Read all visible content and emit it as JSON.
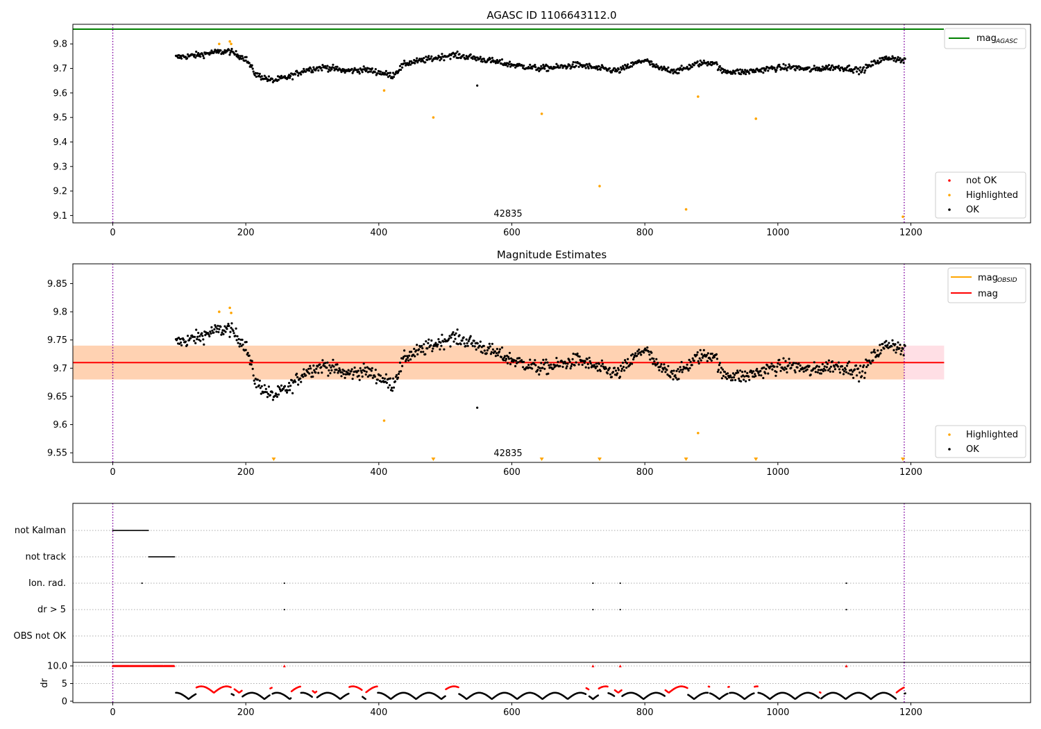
{
  "chart_data": [
    {
      "type": "scatter",
      "title": "AGASC ID 1106643112.0",
      "xlim": [
        -60,
        1380
      ],
      "ylim": [
        9.07,
        9.88
      ],
      "xticks": [
        0,
        200,
        400,
        600,
        800,
        1000,
        1200
      ],
      "yticks": [
        9.1,
        9.2,
        9.3,
        9.4,
        9.5,
        9.6,
        9.7,
        9.8
      ],
      "obsid_label": "42835",
      "obsid_label_x": 595,
      "mag_agasc": 9.86,
      "obs_boundaries": [
        0,
        1190
      ],
      "highlighted_points": {
        "x": [
          160,
          176,
          178,
          408,
          482,
          645,
          732,
          862,
          880,
          967,
          1188
        ],
        "y": [
          9.8,
          9.81,
          9.8,
          9.61,
          9.5,
          9.515,
          9.22,
          9.125,
          9.585,
          9.495,
          9.095
        ]
      },
      "outliers": {
        "x": [
          548
        ],
        "y": [
          9.63
        ]
      },
      "legend_lines": [
        {
          "label": "mag",
          "subscript": "AGASC",
          "color": "#008000"
        }
      ],
      "legend_points": [
        {
          "label": "not OK",
          "color": "#ff0000"
        },
        {
          "label": "Highlighted",
          "color": "#ffa500"
        },
        {
          "label": "OK",
          "color": "#000000"
        }
      ],
      "legend_placement_lines": "top-right",
      "legend_placement_points": "bottom-right"
    },
    {
      "type": "scatter",
      "title": "Magnitude Estimates",
      "xlim": [
        -60,
        1380
      ],
      "ylim": [
        9.533,
        9.885
      ],
      "xticks": [
        0,
        200,
        400,
        600,
        800,
        1000,
        1200
      ],
      "yticks": [
        9.55,
        9.6,
        9.65,
        9.7,
        9.75,
        9.8,
        9.85
      ],
      "obsid_label": "42835",
      "obsid_label_x": 595,
      "mag": 9.71,
      "mag_band": [
        9.68,
        9.74
      ],
      "mag_obsid_band": [
        9.68,
        9.74
      ],
      "band_x_range": [
        -60,
        1250
      ],
      "obs_boundaries": [
        0,
        1190
      ],
      "highlighted_points": {
        "x": [
          160,
          176,
          178,
          408,
          880
        ],
        "y": [
          9.8,
          9.807,
          9.798,
          9.607,
          9.585
        ]
      },
      "outliers": {
        "x": [
          548
        ],
        "y": [
          9.63
        ]
      },
      "off_scale_markers_x": [
        242,
        482,
        645,
        732,
        862,
        967,
        1188
      ],
      "legend_lines": [
        {
          "label": "mag",
          "subscript": "OBSID",
          "color": "#ffa500"
        },
        {
          "label": "mag",
          "subscript": "",
          "color": "#ff0000"
        }
      ],
      "legend_points": [
        {
          "label": "Highlighted",
          "color": "#ffa500"
        },
        {
          "label": "OK",
          "color": "#000000"
        }
      ],
      "legend_placement_lines": "top-right",
      "legend_placement_points": "bottom-right"
    },
    {
      "type": "scatter",
      "xlim": [
        -60,
        1380
      ],
      "xticks": [
        0,
        200,
        400,
        600,
        800,
        1000,
        1200
      ],
      "flag_labels": [
        "not Kalman",
        "not track",
        "Ion. rad.",
        "dr > 5",
        "OBS not OK"
      ],
      "flags": {
        "not_kalman": {
          "from": 0,
          "to": 54
        },
        "not_track": {
          "from": 54,
          "to": 93
        },
        "ion_rad": [
          44,
          258,
          722,
          763,
          1103
        ],
        "dr_gt_5": [
          258,
          722,
          763,
          1103
        ],
        "obs_not_ok": []
      },
      "obs_boundaries": [
        0,
        1190
      ]
    },
    {
      "type": "scatter",
      "ylabel": "dr",
      "xlim": [
        -60,
        1380
      ],
      "ylim": [
        -0.4,
        11
      ],
      "xticks": [
        0,
        200,
        400,
        600,
        800,
        1000,
        1200
      ],
      "yticks": [
        0,
        5,
        10
      ],
      "clip_value": 10,
      "clipped_points_x": [
        258,
        722,
        763,
        1103
      ],
      "clipped_band": {
        "from": 0,
        "to": 93
      },
      "red_segments": [
        [
          125,
          178
        ],
        [
          182,
          195
        ],
        [
          236,
          240
        ],
        [
          268,
          282
        ],
        [
          300,
          307
        ],
        [
          355,
          375
        ],
        [
          380,
          398
        ],
        [
          500,
          520
        ],
        [
          712,
          716
        ],
        [
          730,
          745
        ],
        [
          755,
          765
        ],
        [
          830,
          865
        ],
        [
          895,
          898
        ],
        [
          925,
          927
        ],
        [
          965,
          970
        ],
        [
          1062,
          1065
        ],
        [
          1178,
          1190
        ]
      ],
      "obs_boundaries": [
        0,
        1190
      ]
    }
  ]
}
